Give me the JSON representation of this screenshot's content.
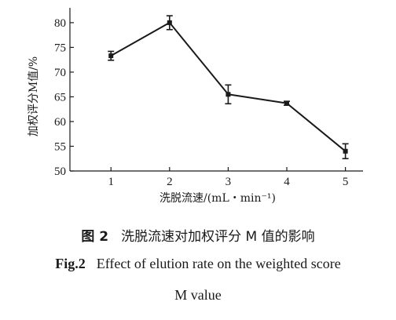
{
  "chart_data": {
    "type": "line",
    "x": [
      1,
      2,
      3,
      4,
      5
    ],
    "xticks": [
      "1",
      "2",
      "3",
      "4",
      "5"
    ],
    "yticks": [
      "50",
      "55",
      "60",
      "65",
      "70",
      "75",
      "80"
    ],
    "series": [
      {
        "values": [
          73.3,
          80.0,
          65.5,
          63.7,
          54.0
        ],
        "errors": [
          0.9,
          1.4,
          1.9,
          0.4,
          1.5
        ]
      }
    ],
    "xlim": [
      0.3,
      5.3
    ],
    "ylim": [
      50,
      83
    ],
    "xlabel": "洗脱流速/(mL・min⁻¹)",
    "ylabel": "加权评分M值/%",
    "grid": false,
    "legend": false
  },
  "caption": {
    "cn_number": "图 2",
    "cn_text": "洗脱流速对加权评分 M 值的影响",
    "en_number": "Fig.2",
    "en_text_line1": "Effect of elution rate on the weighted score",
    "en_text_line2": "M value"
  }
}
